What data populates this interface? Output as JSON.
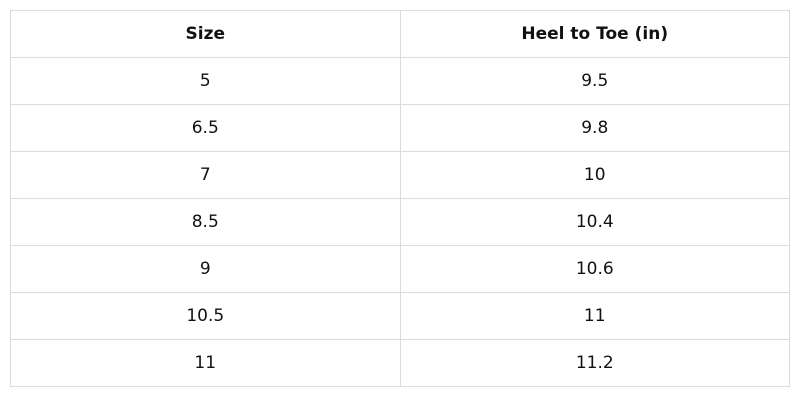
{
  "table": {
    "header": [
      "Size",
      "Heel to Toe (in)"
    ],
    "rows": [
      [
        "5",
        "9.5"
      ],
      [
        "6.5",
        "9.8"
      ],
      [
        "7",
        "10"
      ],
      [
        "8.5",
        "10.4"
      ],
      [
        "9",
        "10.6"
      ],
      [
        "10.5",
        "11"
      ],
      [
        "11",
        "11.2"
      ]
    ]
  }
}
